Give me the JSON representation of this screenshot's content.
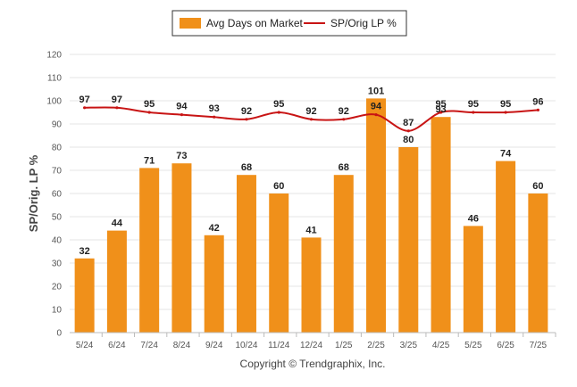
{
  "chart_data": {
    "type": "bar",
    "categories": [
      "5/24",
      "6/24",
      "7/24",
      "8/24",
      "9/24",
      "10/24",
      "11/24",
      "12/24",
      "1/25",
      "2/25",
      "3/25",
      "4/25",
      "5/25",
      "6/25",
      "7/25"
    ],
    "series": [
      {
        "name": "Avg Days on Market",
        "type": "bar",
        "color": "#f0901a",
        "values": [
          32,
          44,
          71,
          73,
          42,
          68,
          60,
          41,
          68,
          101,
          80,
          93,
          46,
          74,
          60
        ]
      },
      {
        "name": "SP/Orig LP %",
        "type": "line",
        "color": "#c81414",
        "values": [
          97,
          97,
          95,
          94,
          93,
          92,
          95,
          92,
          92,
          94,
          87,
          95,
          95,
          95,
          96
        ]
      }
    ],
    "ylabel": "SP/Orig. LP %",
    "ylim": [
      0,
      120
    ],
    "yticks": [
      0,
      10,
      20,
      30,
      40,
      50,
      60,
      70,
      80,
      90,
      100,
      110,
      120
    ],
    "grid": true,
    "legend_position": "top-center"
  },
  "footer": "Copyright © Trendgraphix, Inc."
}
